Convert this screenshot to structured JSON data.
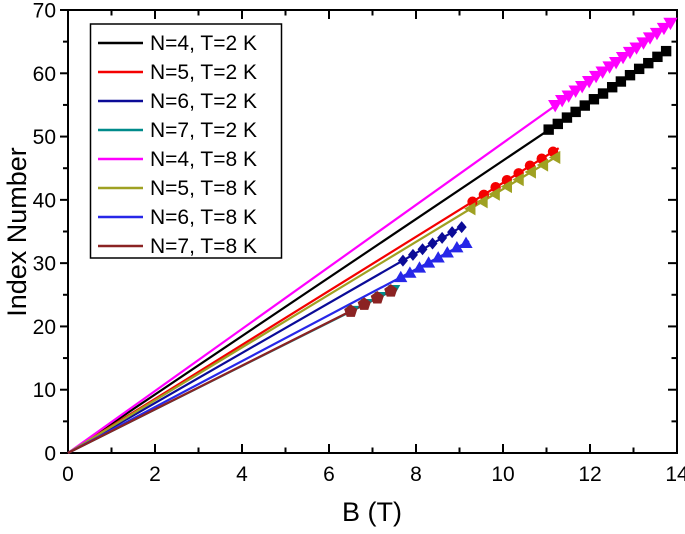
{
  "figure": {
    "background": "#ffffff"
  },
  "chart_data": {
    "type": "scatter",
    "title": "",
    "xlabel": "B (T)",
    "ylabel": "Index Number",
    "xlim": [
      0,
      14
    ],
    "ylim": [
      0,
      70
    ],
    "x_major_ticks": [
      0,
      2,
      4,
      6,
      8,
      10,
      12,
      14
    ],
    "x_minor_ticks": [
      1,
      3,
      5,
      7,
      9,
      11,
      13
    ],
    "y_major_ticks": [
      0,
      10,
      20,
      30,
      40,
      50,
      60,
      70
    ],
    "y_minor_ticks": [
      5,
      15,
      25,
      35,
      45,
      55,
      65
    ],
    "grid": false,
    "legend_position": "top-left",
    "frame": true,
    "series": [
      {
        "name": "N=4, T=2 K",
        "color": "#000000",
        "marker": "square",
        "marker_size": 5.2,
        "line_fit": {
          "slope": 4.62,
          "x_start": 0,
          "x_end": 13.82
        },
        "points": [
          [
            11.05,
            51.1
          ],
          [
            11.26,
            52.0
          ],
          [
            11.47,
            53.0
          ],
          [
            11.67,
            53.9
          ],
          [
            11.88,
            54.9
          ],
          [
            12.09,
            55.9
          ],
          [
            12.3,
            56.8
          ],
          [
            12.51,
            57.8
          ],
          [
            12.71,
            58.7
          ],
          [
            12.92,
            59.7
          ],
          [
            13.13,
            60.7
          ],
          [
            13.34,
            61.6
          ],
          [
            13.55,
            62.6
          ],
          [
            13.75,
            63.5
          ]
        ]
      },
      {
        "name": "N=5, T=2 K",
        "color": "#F40000",
        "marker": "circle",
        "marker_size": 5.2,
        "line_fit": {
          "slope": 4.27,
          "x_start": 0,
          "x_end": 11.28
        },
        "points": [
          [
            9.3,
            39.7
          ],
          [
            9.56,
            40.8
          ],
          [
            9.83,
            42.0
          ],
          [
            10.09,
            43.1
          ],
          [
            10.36,
            44.2
          ],
          [
            10.62,
            45.4
          ],
          [
            10.89,
            46.5
          ],
          [
            11.15,
            47.6
          ]
        ]
      },
      {
        "name": "N=6, T=2 K",
        "color": "#0B0B97",
        "marker": "diamond",
        "marker_size": 5.0,
        "line_fit": {
          "slope": 3.95,
          "x_start": 0,
          "x_end": 9.12
        },
        "points": [
          [
            7.7,
            30.4
          ],
          [
            7.93,
            31.3
          ],
          [
            8.15,
            32.2
          ],
          [
            8.38,
            33.1
          ],
          [
            8.6,
            34.0
          ],
          [
            8.83,
            34.9
          ],
          [
            9.05,
            35.7
          ]
        ]
      },
      {
        "name": "N=7, T=2 K",
        "color": "#008B8B",
        "marker": "triangle-down",
        "marker_size": 5.5,
        "line_fit": {
          "slope": 3.44,
          "x_start": 0,
          "x_end": 7.55
        },
        "points": [
          [
            6.55,
            22.5
          ],
          [
            6.87,
            23.6
          ],
          [
            7.18,
            24.7
          ],
          [
            7.5,
            25.8
          ]
        ]
      },
      {
        "name": "N=4, T=8 K",
        "color": "#FF00FF",
        "marker": "triangle-down",
        "marker_size": 6.5,
        "line_fit": {
          "slope": 4.9,
          "x_start": 0,
          "x_end": 13.93
        },
        "points": [
          [
            11.2,
            54.9
          ],
          [
            11.36,
            55.7
          ],
          [
            11.51,
            56.4
          ],
          [
            11.67,
            57.2
          ],
          [
            11.82,
            57.9
          ],
          [
            11.98,
            58.7
          ],
          [
            12.14,
            59.5
          ],
          [
            12.29,
            60.2
          ],
          [
            12.45,
            61.0
          ],
          [
            12.6,
            61.7
          ],
          [
            12.76,
            62.5
          ],
          [
            12.92,
            63.3
          ],
          [
            13.07,
            64.0
          ],
          [
            13.23,
            64.8
          ],
          [
            13.38,
            65.6
          ],
          [
            13.54,
            66.3
          ],
          [
            13.7,
            67.1
          ],
          [
            13.85,
            67.9
          ]
        ]
      },
      {
        "name": "N=5, T=8 K",
        "color": "#9FA122",
        "marker": "triangle-left",
        "marker_size": 6.0,
        "line_fit": {
          "slope": 4.17,
          "x_start": 0,
          "x_end": 11.3
        },
        "points": [
          [
            9.25,
            38.6
          ],
          [
            9.53,
            39.7
          ],
          [
            9.81,
            40.9
          ],
          [
            10.09,
            42.1
          ],
          [
            10.36,
            43.2
          ],
          [
            10.64,
            44.4
          ],
          [
            10.92,
            45.5
          ],
          [
            11.2,
            46.7
          ]
        ]
      },
      {
        "name": "N=6, T=8 K",
        "color": "#2727E8",
        "marker": "triangle-up",
        "marker_size": 6.0,
        "line_fit": {
          "slope": 3.63,
          "x_start": 0,
          "x_end": 9.22
        },
        "points": [
          [
            7.65,
            27.8
          ],
          [
            7.86,
            28.5
          ],
          [
            8.08,
            29.3
          ],
          [
            8.29,
            30.1
          ],
          [
            8.51,
            30.9
          ],
          [
            8.72,
            31.7
          ],
          [
            8.94,
            32.5
          ],
          [
            9.15,
            33.2
          ]
        ]
      },
      {
        "name": "N=7, T=8 K",
        "color": "#8B2323",
        "marker": "pentagon",
        "marker_size": 6.0,
        "line_fit": {
          "slope": 3.45,
          "x_start": 0,
          "x_end": 7.52
        },
        "points": [
          [
            6.5,
            22.4
          ],
          [
            6.81,
            23.5
          ],
          [
            7.11,
            24.5
          ],
          [
            7.42,
            25.6
          ]
        ]
      }
    ]
  }
}
